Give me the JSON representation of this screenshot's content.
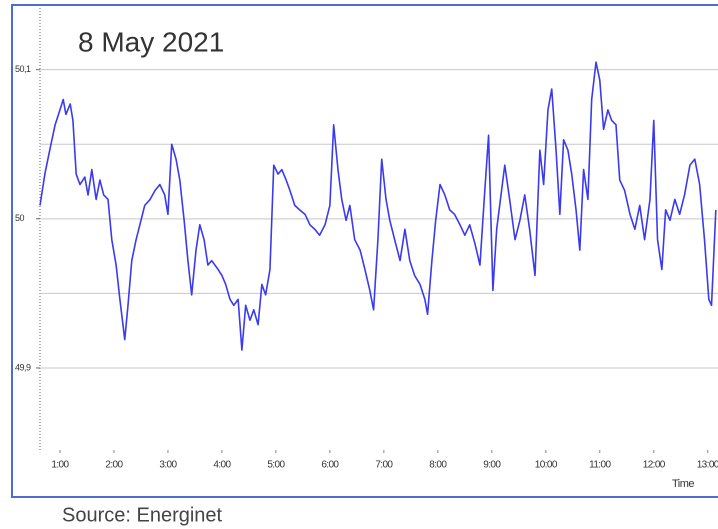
{
  "chart_data": {
    "type": "line",
    "title": "8 May 2021",
    "x_label": "Time",
    "source": "Source: Energinet",
    "x": [
      0.63,
      0.72,
      0.81,
      0.91,
      1.0,
      1.06,
      1.11,
      1.19,
      1.24,
      1.3,
      1.37,
      1.46,
      1.52,
      1.59,
      1.67,
      1.74,
      1.81,
      1.89,
      1.96,
      2.04,
      2.11,
      2.2,
      2.26,
      2.33,
      2.41,
      2.48,
      2.57,
      2.67,
      2.76,
      2.85,
      2.94,
      3.0,
      3.07,
      3.15,
      3.22,
      3.3,
      3.37,
      3.44,
      3.52,
      3.59,
      3.67,
      3.74,
      3.81,
      3.93,
      4.0,
      4.07,
      4.15,
      4.22,
      4.3,
      4.37,
      4.44,
      4.52,
      4.59,
      4.67,
      4.74,
      4.81,
      4.89,
      4.96,
      5.04,
      5.11,
      5.19,
      5.26,
      5.35,
      5.44,
      5.54,
      5.63,
      5.72,
      5.81,
      5.91,
      6.0,
      6.07,
      6.15,
      6.22,
      6.3,
      6.37,
      6.46,
      6.56,
      6.65,
      6.74,
      6.81,
      6.89,
      6.96,
      7.04,
      7.11,
      7.2,
      7.3,
      7.39,
      7.48,
      7.57,
      7.67,
      7.76,
      7.81,
      7.89,
      7.96,
      8.04,
      8.13,
      8.22,
      8.31,
      8.41,
      8.5,
      8.59,
      8.69,
      8.78,
      8.87,
      8.94,
      9.02,
      9.09,
      9.17,
      9.24,
      9.33,
      9.43,
      9.52,
      9.61,
      9.7,
      9.8,
      9.89,
      9.96,
      10.04,
      10.11,
      10.19,
      10.26,
      10.33,
      10.41,
      10.48,
      10.56,
      10.63,
      10.7,
      10.78,
      10.85,
      10.93,
      11.0,
      11.07,
      11.15,
      11.22,
      11.3,
      11.37,
      11.46,
      11.56,
      11.65,
      11.74,
      11.83,
      11.93,
      12.0,
      12.07,
      12.15,
      12.22,
      12.3,
      12.39,
      12.48,
      12.57,
      12.67,
      12.76,
      12.85,
      12.94,
      13.02,
      13.07,
      13.15
    ],
    "series": [
      {
        "color": "#3a3af0",
        "values": [
          50.009,
          50.03,
          50.046,
          50.063,
          50.073,
          50.08,
          50.07,
          50.077,
          50.066,
          50.03,
          50.023,
          50.028,
          50.016,
          50.033,
          50.013,
          50.026,
          50.016,
          50.013,
          49.986,
          49.969,
          49.946,
          49.919,
          49.942,
          49.972,
          49.986,
          49.996,
          50.009,
          50.013,
          50.019,
          50.023,
          50.016,
          50.003,
          50.05,
          50.04,
          50.026,
          49.999,
          49.972,
          49.949,
          49.979,
          49.996,
          49.986,
          49.969,
          49.972,
          49.966,
          49.962,
          49.956,
          49.946,
          49.942,
          49.946,
          49.912,
          49.942,
          49.932,
          49.939,
          49.929,
          49.956,
          49.949,
          49.966,
          50.036,
          50.03,
          50.033,
          50.026,
          50.019,
          50.009,
          50.006,
          50.003,
          49.996,
          49.993,
          49.989,
          49.996,
          50.009,
          50.063,
          50.033,
          50.013,
          49.999,
          50.009,
          49.986,
          49.979,
          49.966,
          49.952,
          49.939,
          49.986,
          50.04,
          50.013,
          49.999,
          49.986,
          49.972,
          49.993,
          49.972,
          49.962,
          49.956,
          49.946,
          49.936,
          49.972,
          49.999,
          50.023,
          50.016,
          50.006,
          50.003,
          49.996,
          49.989,
          49.996,
          49.983,
          49.969,
          50.019,
          50.056,
          49.952,
          49.993,
          50.016,
          50.036,
          50.013,
          49.986,
          49.999,
          50.016,
          49.993,
          49.962,
          50.046,
          50.023,
          50.073,
          50.087,
          50.046,
          50.003,
          50.053,
          50.046,
          50.03,
          50.006,
          49.979,
          50.033,
          50.013,
          50.08,
          50.105,
          50.093,
          50.06,
          50.073,
          50.066,
          50.063,
          50.026,
          50.019,
          50.003,
          49.993,
          50.009,
          49.986,
          50.013,
          50.066,
          49.986,
          49.966,
          50.006,
          49.999,
          50.013,
          50.003,
          50.016,
          50.036,
          50.04,
          50.023,
          49.986,
          49.946,
          49.942,
          50.006
        ]
      }
    ],
    "xlim": [
      0.63,
      13.19
    ],
    "xticks": [
      {
        "value": 1,
        "label": "1:00"
      },
      {
        "value": 2,
        "label": "2:00"
      },
      {
        "value": 3,
        "label": "3:00"
      },
      {
        "value": 4,
        "label": "4:00"
      },
      {
        "value": 5,
        "label": "5:00"
      },
      {
        "value": 6,
        "label": "6:00"
      },
      {
        "value": 7,
        "label": "7:00"
      },
      {
        "value": 8,
        "label": "8:00"
      },
      {
        "value": 9,
        "label": "9:00"
      },
      {
        "value": 10,
        "label": "10:00"
      },
      {
        "value": 11,
        "label": "11:00"
      },
      {
        "value": 12,
        "label": "12:00"
      },
      {
        "value": 13,
        "label": "13:00"
      }
    ],
    "ylim": [
      49.845,
      50.14
    ],
    "yticks": [
      {
        "value": 49.9,
        "label": "49,9"
      },
      50,
      {
        "value": 50.1,
        "label": "50,1"
      }
    ],
    "minor_yticks": [
      49.95,
      50.05
    ],
    "grid": true
  }
}
